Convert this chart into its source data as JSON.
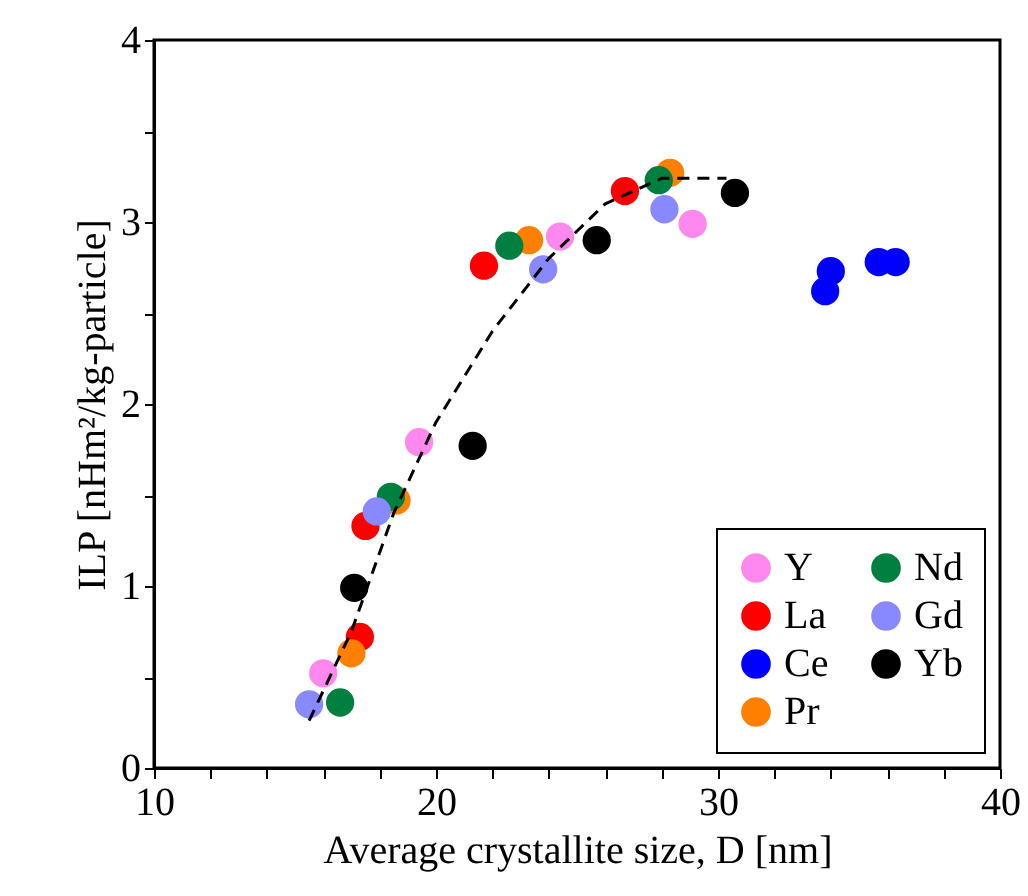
{
  "chart_data": {
    "type": "scatter",
    "xlabel": "Average crystallite size,  D [nm]",
    "ylabel": "ILP [nHm²/kg-particle]",
    "xlim": [
      10,
      40
    ],
    "ylim": [
      0,
      4
    ],
    "xticks": [
      10,
      {
        "value": 12,
        "label": null
      },
      {
        "value": 14,
        "label": null
      },
      {
        "value": 16,
        "label": null
      },
      {
        "value": 18,
        "label": null
      },
      20,
      {
        "value": 22,
        "label": null
      },
      {
        "value": 24,
        "label": null
      },
      {
        "value": 26,
        "label": null
      },
      {
        "value": 28,
        "label": null
      },
      30,
      {
        "value": 32,
        "label": null
      },
      {
        "value": 34,
        "label": null
      },
      {
        "value": 36,
        "label": null
      },
      {
        "value": 38,
        "label": null
      },
      40
    ],
    "yticks": [
      0,
      {
        "value": 0.5,
        "label": null
      },
      1,
      {
        "value": 1.5,
        "label": null
      },
      2,
      {
        "value": 2.5,
        "label": null
      },
      3,
      {
        "value": 3.5,
        "label": null
      },
      4
    ],
    "grid": false,
    "legend": "bottom right",
    "marker": "circle",
    "series": [
      {
        "name": "Y",
        "color": "#ff88ee",
        "x": [
          16.0,
          19.4,
          24.4,
          29.1
        ],
        "values": [
          0.52,
          1.79,
          2.92,
          2.99
        ]
      },
      {
        "name": "La",
        "color": "#ff0000",
        "x": [
          17.3,
          17.5,
          21.7,
          26.7
        ],
        "values": [
          0.72,
          1.33,
          2.76,
          3.17
        ]
      },
      {
        "name": "Ce",
        "color": "#0000ff",
        "x": [
          33.8,
          34.0,
          35.7,
          36.3
        ],
        "values": [
          2.62,
          2.73,
          2.78,
          2.78
        ]
      },
      {
        "name": "Pr",
        "color": "#ff8000",
        "x": [
          17.0,
          18.6,
          23.3,
          28.3
        ],
        "values": [
          0.63,
          1.47,
          2.9,
          3.27
        ]
      },
      {
        "name": "Nd",
        "color": "#008040",
        "x": [
          16.6,
          18.4,
          22.6,
          27.9
        ],
        "values": [
          0.36,
          1.49,
          2.87,
          3.23
        ]
      },
      {
        "name": "Gd",
        "color": "#8888ff",
        "x": [
          15.5,
          17.9,
          23.8,
          28.1
        ],
        "values": [
          0.35,
          1.41,
          2.74,
          3.07
        ]
      },
      {
        "name": "Yb",
        "color": "#000000",
        "x": [
          17.1,
          21.3,
          25.7,
          30.6
        ],
        "values": [
          0.99,
          1.77,
          2.9,
          3.16
        ]
      },
      {
        "type": "line",
        "color": "#000000",
        "line_style": "dashed",
        "marker": "none",
        "x": [
          15.5,
          17,
          18.5,
          20,
          22,
          24,
          26,
          28,
          30.3
        ],
        "values": [
          0.26,
          0.75,
          1.4,
          1.9,
          2.4,
          2.8,
          3.1,
          3.24,
          3.24
        ]
      }
    ]
  }
}
